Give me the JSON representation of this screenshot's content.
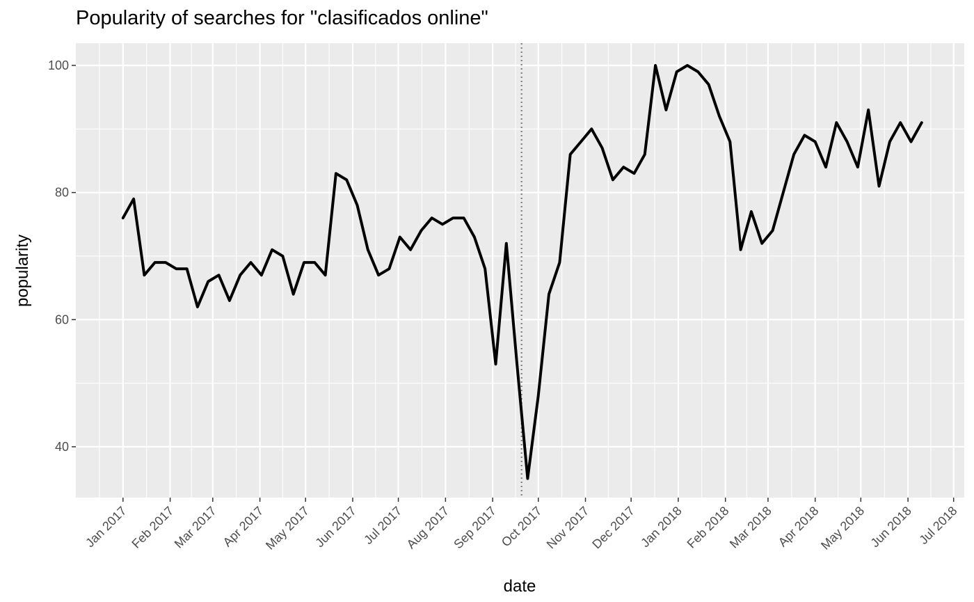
{
  "chart_data": {
    "type": "line",
    "title": "Popularity of searches for \"clasificados online\"",
    "xlabel": "date",
    "ylabel": "popularity",
    "xlim": [
      "2016-12-01",
      "2018-07-08"
    ],
    "ylim": [
      32,
      103.5
    ],
    "y_ticks": [
      40,
      60,
      80,
      100
    ],
    "x_ticks": [
      {
        "date": "2017-01-01",
        "label": "Jan 2017"
      },
      {
        "date": "2017-02-01",
        "label": "Feb 2017"
      },
      {
        "date": "2017-03-01",
        "label": "Mar 2017"
      },
      {
        "date": "2017-04-01",
        "label": "Apr 2017"
      },
      {
        "date": "2017-05-01",
        "label": "May 2017"
      },
      {
        "date": "2017-06-01",
        "label": "Jun 2017"
      },
      {
        "date": "2017-07-01",
        "label": "Jul 2017"
      },
      {
        "date": "2017-08-01",
        "label": "Aug 2017"
      },
      {
        "date": "2017-09-01",
        "label": "Sep 2017"
      },
      {
        "date": "2017-10-01",
        "label": "Oct 2017"
      },
      {
        "date": "2017-11-01",
        "label": "Nov 2017"
      },
      {
        "date": "2017-12-01",
        "label": "Dec 2017"
      },
      {
        "date": "2018-01-01",
        "label": "Jan 2018"
      },
      {
        "date": "2018-02-01",
        "label": "Feb 2018"
      },
      {
        "date": "2018-03-01",
        "label": "Mar 2018"
      },
      {
        "date": "2018-04-01",
        "label": "Apr 2018"
      },
      {
        "date": "2018-05-01",
        "label": "May 2018"
      },
      {
        "date": "2018-06-01",
        "label": "Jun 2018"
      },
      {
        "date": "2018-07-01",
        "label": "Jul 2018"
      }
    ],
    "vline": {
      "date": "2017-09-20",
      "style": "dotted",
      "color": "#808080"
    },
    "grid": true,
    "background": "#ebebeb",
    "line_color": "#000000",
    "series": [
      {
        "x": [
          "2017-01-01",
          "2017-01-08",
          "2017-01-15",
          "2017-01-22",
          "2017-01-29",
          "2017-02-05",
          "2017-02-12",
          "2017-02-19",
          "2017-02-26",
          "2017-03-05",
          "2017-03-12",
          "2017-03-19",
          "2017-03-26",
          "2017-04-02",
          "2017-04-09",
          "2017-04-16",
          "2017-04-23",
          "2017-04-30",
          "2017-05-07",
          "2017-05-14",
          "2017-05-21",
          "2017-05-28",
          "2017-06-04",
          "2017-06-11",
          "2017-06-18",
          "2017-06-25",
          "2017-07-02",
          "2017-07-09",
          "2017-07-16",
          "2017-07-23",
          "2017-07-30",
          "2017-08-06",
          "2017-08-13",
          "2017-08-20",
          "2017-08-27",
          "2017-09-03",
          "2017-09-10",
          "2017-09-17",
          "2017-09-24",
          "2017-10-01",
          "2017-10-08",
          "2017-10-15",
          "2017-10-22",
          "2017-10-29",
          "2017-11-05",
          "2017-11-12",
          "2017-11-19",
          "2017-11-26",
          "2017-12-03",
          "2017-12-10",
          "2017-12-17",
          "2017-12-24",
          "2017-12-31",
          "2018-01-07",
          "2018-01-14",
          "2018-01-21",
          "2018-01-28",
          "2018-02-04",
          "2018-02-11",
          "2018-02-18",
          "2018-02-25",
          "2018-03-04",
          "2018-03-11",
          "2018-03-18",
          "2018-03-25",
          "2018-04-01",
          "2018-04-08",
          "2018-04-15",
          "2018-04-22",
          "2018-04-29",
          "2018-05-06",
          "2018-05-13",
          "2018-05-20",
          "2018-05-27",
          "2018-06-03",
          "2018-06-10"
        ],
        "values": [
          76,
          79,
          67,
          69,
          69,
          68,
          68,
          62,
          66,
          67,
          63,
          67,
          69,
          67,
          71,
          70,
          64,
          69,
          69,
          67,
          83,
          82,
          78,
          71,
          67,
          68,
          73,
          71,
          74,
          76,
          75,
          76,
          76,
          73,
          68,
          53,
          72,
          53,
          35,
          48,
          64,
          69,
          86,
          88,
          90,
          87,
          82,
          84,
          83,
          86,
          100,
          93,
          99,
          100,
          99,
          97,
          92,
          88,
          71,
          77,
          72,
          74,
          80,
          86,
          89,
          88,
          84,
          91,
          88,
          84,
          93,
          81,
          88,
          91,
          88,
          91
        ]
      }
    ]
  }
}
